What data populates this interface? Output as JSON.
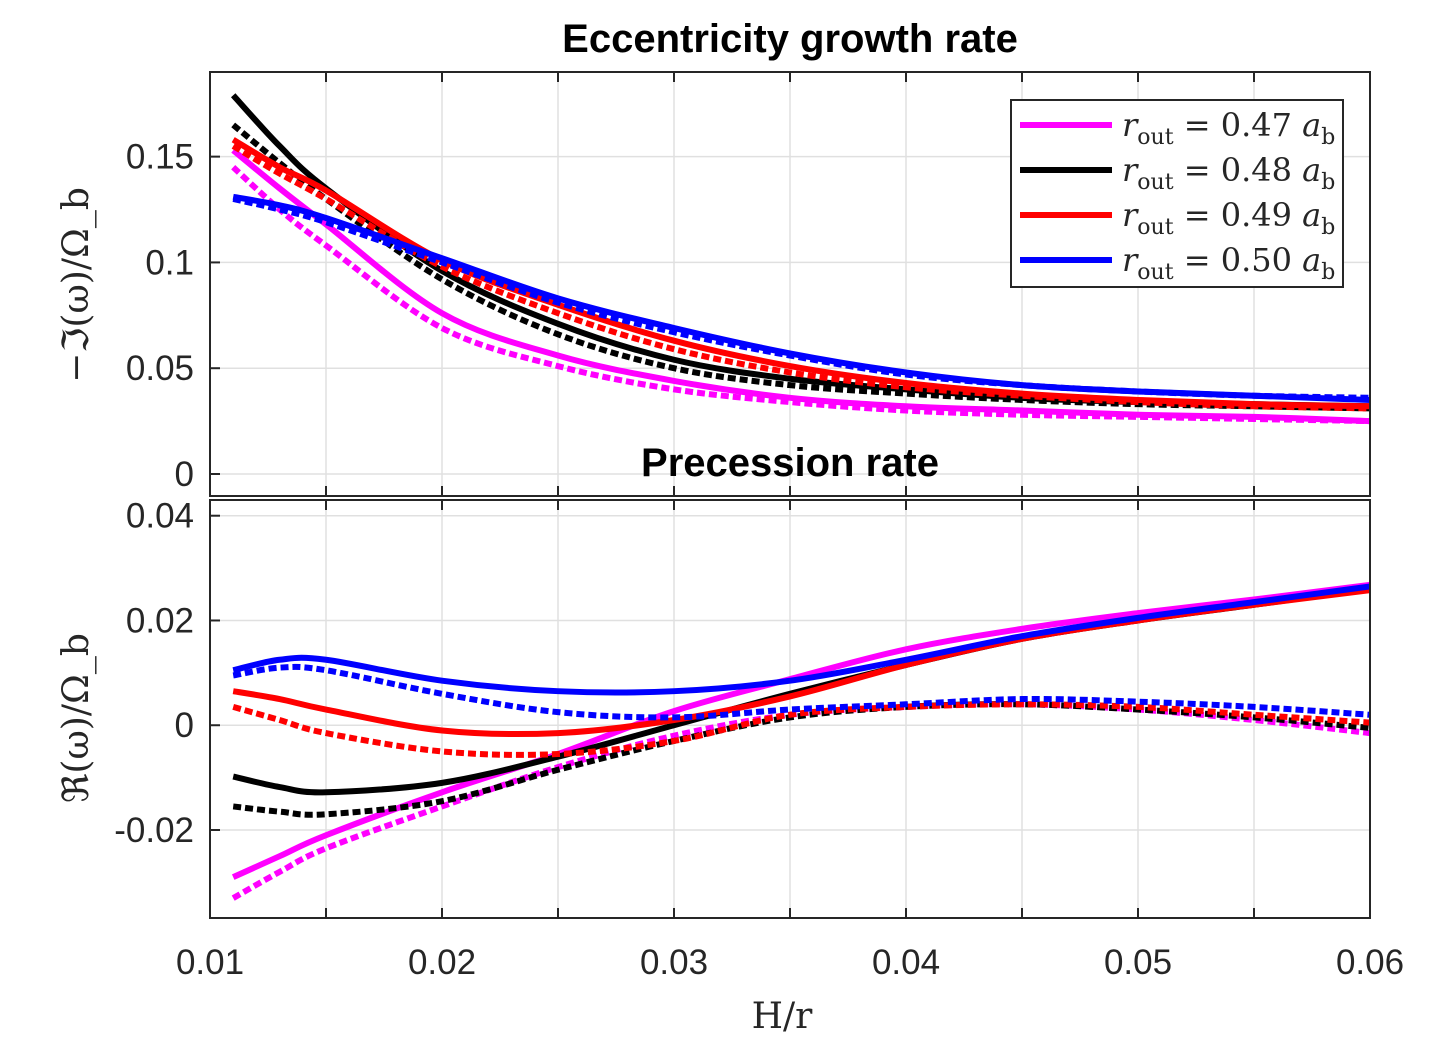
{
  "chart_data": [
    {
      "type": "line",
      "title": "Eccentricity growth rate",
      "ylabel": "−ℑ(ω)/Ω_b",
      "xlabel": "",
      "xlim": [
        0.01,
        0.06
      ],
      "ylim": [
        -0.0104,
        0.19
      ],
      "yticks": [
        0,
        0.05,
        0.1,
        0.15
      ],
      "ytick_labels": [
        "0",
        "0.05",
        "0.1",
        "0.15"
      ],
      "grid": true,
      "legend_position": "top-right",
      "x": [
        0.011,
        0.013,
        0.015,
        0.02,
        0.025,
        0.03,
        0.035,
        0.04,
        0.045,
        0.05,
        0.055,
        0.06
      ],
      "series": [
        {
          "name": "r_out = 0.47 a_b",
          "color": "#ff00ff",
          "style": "solid",
          "values": [
            0.153,
            0.135,
            0.118,
            0.076,
            0.056,
            0.044,
            0.036,
            0.032,
            0.03,
            0.028,
            0.027,
            0.025
          ]
        },
        {
          "color": "#ff00ff",
          "style": "dashed",
          "values": [
            0.145,
            0.125,
            0.108,
            0.069,
            0.051,
            0.04,
            0.034,
            0.03,
            0.028,
            0.027,
            0.026,
            0.025
          ]
        },
        {
          "name": "r_out = 0.48 a_b",
          "color": "#000000",
          "style": "solid",
          "values": [
            0.179,
            0.155,
            0.135,
            0.096,
            0.071,
            0.054,
            0.045,
            0.04,
            0.036,
            0.034,
            0.033,
            0.032
          ]
        },
        {
          "color": "#000000",
          "style": "dashed",
          "values": [
            0.165,
            0.147,
            0.13,
            0.092,
            0.066,
            0.05,
            0.042,
            0.038,
            0.035,
            0.033,
            0.032,
            0.031
          ]
        },
        {
          "name": "r_out = 0.49 a_b",
          "color": "#ff0000",
          "style": "solid",
          "values": [
            0.158,
            0.145,
            0.134,
            0.101,
            0.08,
            0.063,
            0.051,
            0.043,
            0.038,
            0.035,
            0.033,
            0.032
          ]
        },
        {
          "color": "#ff0000",
          "style": "dashed",
          "values": [
            0.155,
            0.142,
            0.13,
            0.098,
            0.076,
            0.059,
            0.048,
            0.041,
            0.037,
            0.034,
            0.032,
            0.031
          ]
        },
        {
          "name": "r_out = 0.50 a_b",
          "color": "#0000ff",
          "style": "solid",
          "values": [
            0.131,
            0.127,
            0.121,
            0.102,
            0.083,
            0.069,
            0.057,
            0.048,
            0.042,
            0.039,
            0.037,
            0.035
          ]
        },
        {
          "color": "#0000ff",
          "style": "dashed",
          "values": [
            0.13,
            0.125,
            0.119,
            0.1,
            0.081,
            0.067,
            0.056,
            0.047,
            0.042,
            0.039,
            0.037,
            0.036
          ]
        }
      ],
      "legend": [
        {
          "label": "r_out = 0.47 a_b",
          "sym": "r",
          "sub": "out",
          "eq": "= 0.47",
          "a": "a",
          "asub": "b",
          "color": "#ff00ff"
        },
        {
          "label": "r_out = 0.48 a_b",
          "sym": "r",
          "sub": "out",
          "eq": "= 0.48",
          "a": "a",
          "asub": "b",
          "color": "#000000"
        },
        {
          "label": "r_out = 0.49 a_b",
          "sym": "r",
          "sub": "out",
          "eq": "= 0.49",
          "a": "a",
          "asub": "b",
          "color": "#ff0000"
        },
        {
          "label": "r_out = 0.50 a_b",
          "sym": "r",
          "sub": "out",
          "eq": "= 0.50",
          "a": "a",
          "asub": "b",
          "color": "#0000ff"
        }
      ]
    },
    {
      "type": "line",
      "title": "Precession rate",
      "ylabel": "ℜ(ω)/Ω_b",
      "xlabel": "H/r",
      "xlim": [
        0.01,
        0.06
      ],
      "ylim": [
        -0.0368,
        0.043
      ],
      "yticks": [
        -0.02,
        0,
        0.02,
        0.04
      ],
      "ytick_labels": [
        "-0.02",
        "0",
        "0.02",
        "0.04"
      ],
      "xticks": [
        0.01,
        0.02,
        0.03,
        0.04,
        0.05,
        0.06
      ],
      "xtick_labels": [
        "0.01",
        "0.02",
        "0.03",
        "0.04",
        "0.05",
        "0.06"
      ],
      "grid": true,
      "x": [
        0.011,
        0.013,
        0.015,
        0.02,
        0.025,
        0.03,
        0.035,
        0.04,
        0.045,
        0.05,
        0.055,
        0.06
      ],
      "series": [
        {
          "name": "r_out = 0.47 a_b",
          "color": "#ff00ff",
          "style": "solid",
          "values": [
            -0.029,
            -0.025,
            -0.021,
            -0.0128,
            -0.0055,
            0.0027,
            0.0088,
            0.0145,
            0.0184,
            0.0214,
            0.024,
            0.0268
          ]
        },
        {
          "color": "#ff00ff",
          "style": "dashed",
          "values": [
            -0.033,
            -0.028,
            -0.0235,
            -0.0155,
            -0.008,
            -0.002,
            0.002,
            0.0035,
            0.004,
            0.003,
            0.001,
            -0.0015
          ]
        },
        {
          "name": "r_out = 0.48 a_b",
          "color": "#000000",
          "style": "solid",
          "values": [
            -0.0098,
            -0.0118,
            -0.0128,
            -0.011,
            -0.006,
            0.0,
            0.006,
            0.0115,
            0.0165,
            0.02,
            0.023,
            0.026
          ]
        },
        {
          "color": "#000000",
          "style": "dashed",
          "values": [
            -0.0155,
            -0.0165,
            -0.017,
            -0.0145,
            -0.0085,
            -0.003,
            0.0015,
            0.0035,
            0.004,
            0.003,
            0.0015,
            -0.0005
          ]
        },
        {
          "name": "r_out = 0.49 a_b",
          "color": "#ff0000",
          "style": "solid",
          "values": [
            0.0065,
            0.005,
            0.003,
            -0.001,
            -0.0015,
            0.001,
            0.0055,
            0.0115,
            0.0165,
            0.02,
            0.023,
            0.0258
          ]
        },
        {
          "color": "#ff0000",
          "style": "dashed",
          "values": [
            0.0035,
            0.001,
            -0.0015,
            -0.005,
            -0.0055,
            -0.003,
            0.002,
            0.0035,
            0.004,
            0.0035,
            0.002,
            0.0005
          ]
        },
        {
          "name": "r_out = 0.50 a_b",
          "color": "#0000ff",
          "style": "solid",
          "values": [
            0.0105,
            0.0125,
            0.0125,
            0.0085,
            0.0065,
            0.0065,
            0.0085,
            0.0125,
            0.017,
            0.0205,
            0.0235,
            0.0265
          ]
        },
        {
          "color": "#0000ff",
          "style": "dashed",
          "values": [
            0.0095,
            0.011,
            0.0105,
            0.006,
            0.0025,
            0.0015,
            0.003,
            0.004,
            0.005,
            0.0045,
            0.0035,
            0.002
          ]
        }
      ]
    }
  ]
}
